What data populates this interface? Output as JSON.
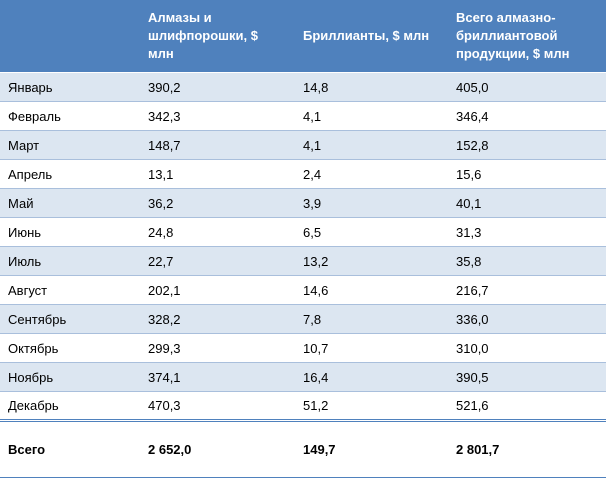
{
  "table": {
    "header": [
      "",
      "Алмазы и шлифпорошки, $ млн",
      "Бриллианты, $ млн",
      "Всего алмазно-бриллиантовой продукции, $ млн"
    ],
    "rows": [
      [
        "Январь",
        "390,2",
        "14,8",
        "405,0"
      ],
      [
        "Февраль",
        "342,3",
        "4,1",
        "346,4"
      ],
      [
        "Март",
        "148,7",
        "4,1",
        "152,8"
      ],
      [
        "Апрель",
        "13,1",
        "2,4",
        "15,6"
      ],
      [
        "Май",
        "36,2",
        "3,9",
        "40,1"
      ],
      [
        "Июнь",
        "24,8",
        "6,5",
        "31,3"
      ],
      [
        "Июль",
        "22,7",
        "13,2",
        "35,8"
      ],
      [
        "Август",
        "202,1",
        "14,6",
        "216,7"
      ],
      [
        "Сентябрь",
        "328,2",
        "7,8",
        "336,0"
      ],
      [
        "Октябрь",
        "299,3",
        "10,7",
        "310,0"
      ],
      [
        "Ноябрь",
        "374,1",
        "16,4",
        "390,5"
      ],
      [
        "Декабрь",
        "470,3",
        "51,2",
        "521,6"
      ]
    ],
    "total": [
      "Всего",
      "2 652,0",
      "149,7",
      "2 801,7"
    ]
  }
}
